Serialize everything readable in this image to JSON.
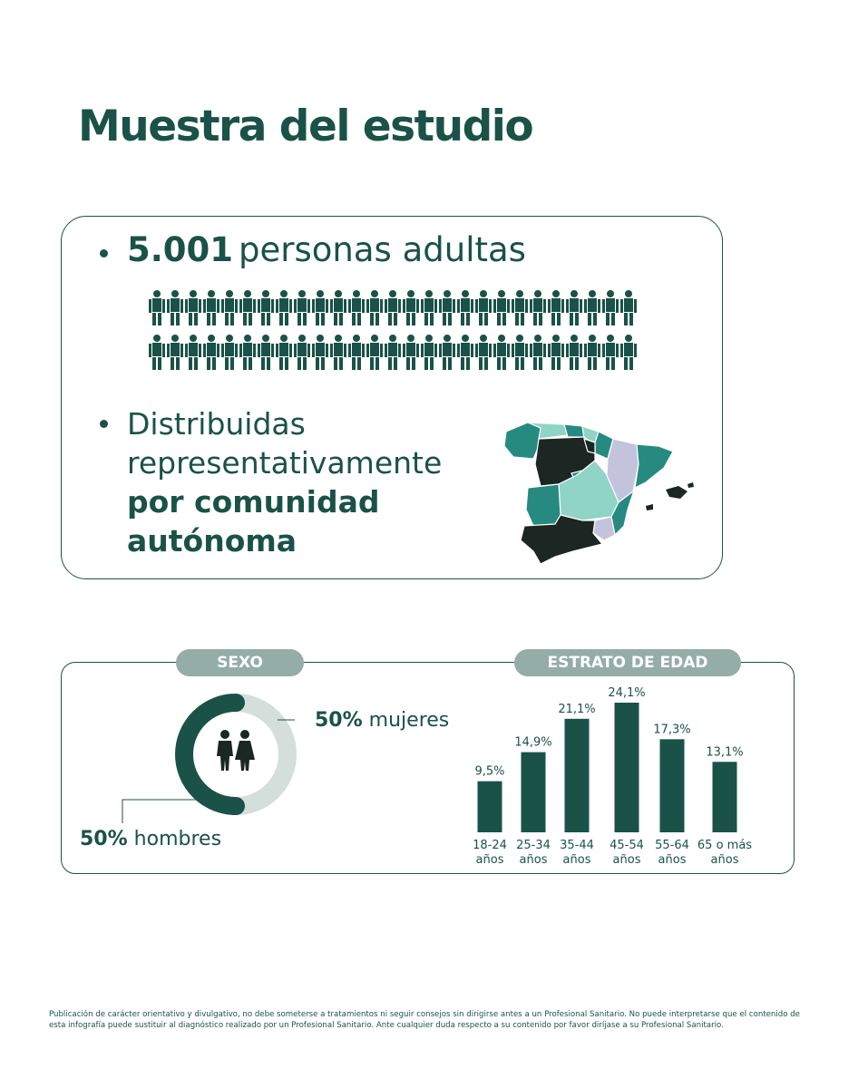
{
  "title": "Muestra del estudio",
  "sample": {
    "number": "5.001",
    "label": "personas adultas"
  },
  "distribution": {
    "line1": "Distribuidas",
    "line2": "representativamente",
    "line3": "por comunidad",
    "line4": "autónoma"
  },
  "sexo": {
    "header": "SEXO",
    "women_pct": "50%",
    "women_label": "mujeres",
    "men_pct": "50%",
    "men_label": "hombres"
  },
  "edad": {
    "header": "ESTRATO DE EDAD"
  },
  "chart_data": [
    {
      "type": "pie",
      "categories": [
        "mujeres",
        "hombres"
      ],
      "values": [
        50,
        50
      ]
    },
    {
      "type": "bar",
      "categories": [
        "18-24 años",
        "25-34 años",
        "35-44 años",
        "45-54 años",
        "55-64 años",
        "65 o más años"
      ],
      "category_lines": [
        [
          "18-24",
          "años"
        ],
        [
          "25-34",
          "años"
        ],
        [
          "35-44",
          "años"
        ],
        [
          "45-54",
          "años"
        ],
        [
          "55-64",
          "años"
        ],
        [
          "65 o más",
          "años"
        ]
      ],
      "values": [
        9.5,
        14.9,
        21.1,
        24.1,
        17.3,
        13.1
      ],
      "value_labels": [
        "9,5%",
        "14,9%",
        "21,1%",
        "24,1%",
        "17,3%",
        "13,1%"
      ],
      "ylim": [
        0,
        24.1
      ],
      "grid": false
    }
  ],
  "colors": {
    "dark_green": "#1a5248",
    "pill_grey": "#94ada7",
    "donut_light": "#d4dedb",
    "map_black": "#1c2623",
    "map_teal": "#268a80",
    "map_mint": "#8fd4c5",
    "map_lavender": "#c4c3dc"
  },
  "footer": "Publicación de carácter orientativo y divulgativo, no debe someterse a tratamientos ni seguir consejos sin dirigirse antes a un Profesional Sanitario. No puede interpretarse que el contenido de esta infografía puede sustituir al diagnóstico realizado por un Profesional Sanitario. Ante cualquier duda respecto a su contenido por favor diríjase a su Profesional Sanitario."
}
